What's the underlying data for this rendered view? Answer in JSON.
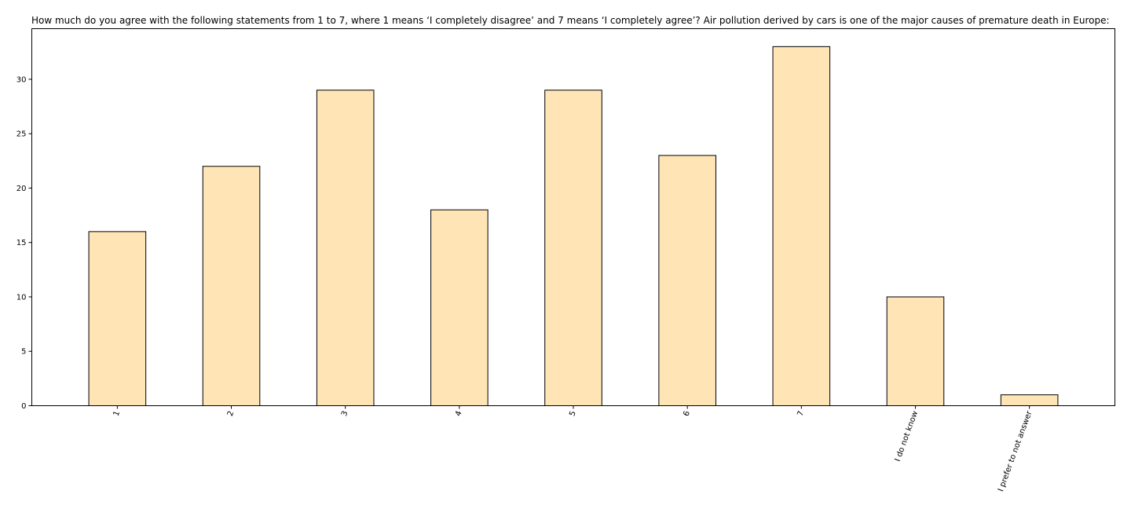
{
  "chart_data": {
    "type": "bar",
    "title": "How much do you agree with the following statements from 1 to 7, where 1 means ‘I completely disagree’ and 7 means ‘I completely agree’? Air pollution derived by cars is one of the major causes of premature death in Europe:",
    "xlabel": "",
    "ylabel": "",
    "categories": [
      "1",
      "2",
      "3",
      "4",
      "5",
      "6",
      "7",
      "I do not know",
      "I prefer to not answer"
    ],
    "values": [
      16,
      22,
      29,
      18,
      29,
      23,
      33,
      10,
      1
    ],
    "ylim": [
      0,
      34.65
    ],
    "yticks": [
      0,
      5,
      10,
      15,
      20,
      25,
      30
    ],
    "x_tick_rotation_deg": 70,
    "grid": false,
    "legend": "none",
    "colors": {
      "bar_fill": "#FFE4B5",
      "bar_edge": "#000000",
      "axis": "#000000",
      "text": "#000000",
      "background": "#FFFFFF"
    }
  }
}
